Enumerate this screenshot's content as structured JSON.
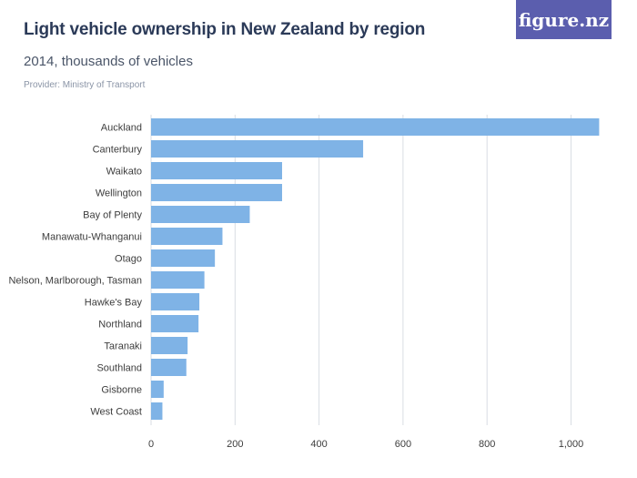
{
  "header": {
    "title": "Light vehicle ownership in New Zealand by region",
    "subtitle": "2014, thousands of vehicles",
    "provider": "Provider: Ministry of Transport",
    "logo_text": "figure.nz"
  },
  "colors": {
    "bar": "#7fb3e6",
    "grid": "#d9dde3",
    "logo_bg": "#5b5eae"
  },
  "chart_data": {
    "type": "bar",
    "orientation": "horizontal",
    "title": "Light vehicle ownership in New Zealand by region",
    "subtitle": "2014, thousands of vehicles",
    "xlabel": "",
    "ylabel": "",
    "xlim": [
      0,
      1100
    ],
    "xticks": [
      0,
      200,
      400,
      600,
      800,
      1000
    ],
    "xtick_labels": [
      "0",
      "200",
      "400",
      "600",
      "800",
      "1,000"
    ],
    "grid": true,
    "categories": [
      "Auckland",
      "Canterbury",
      "Waikato",
      "Wellington",
      "Bay of Plenty",
      "Manawatu-Whanganui",
      "Otago",
      "Nelson, Marlborough, Tasman",
      "Hawke's Bay",
      "Northland",
      "Taranaki",
      "Southland",
      "Gisborne",
      "West Coast"
    ],
    "values": [
      1067,
      505,
      312,
      312,
      235,
      170,
      152,
      127,
      115,
      113,
      87,
      84,
      30,
      27
    ]
  }
}
